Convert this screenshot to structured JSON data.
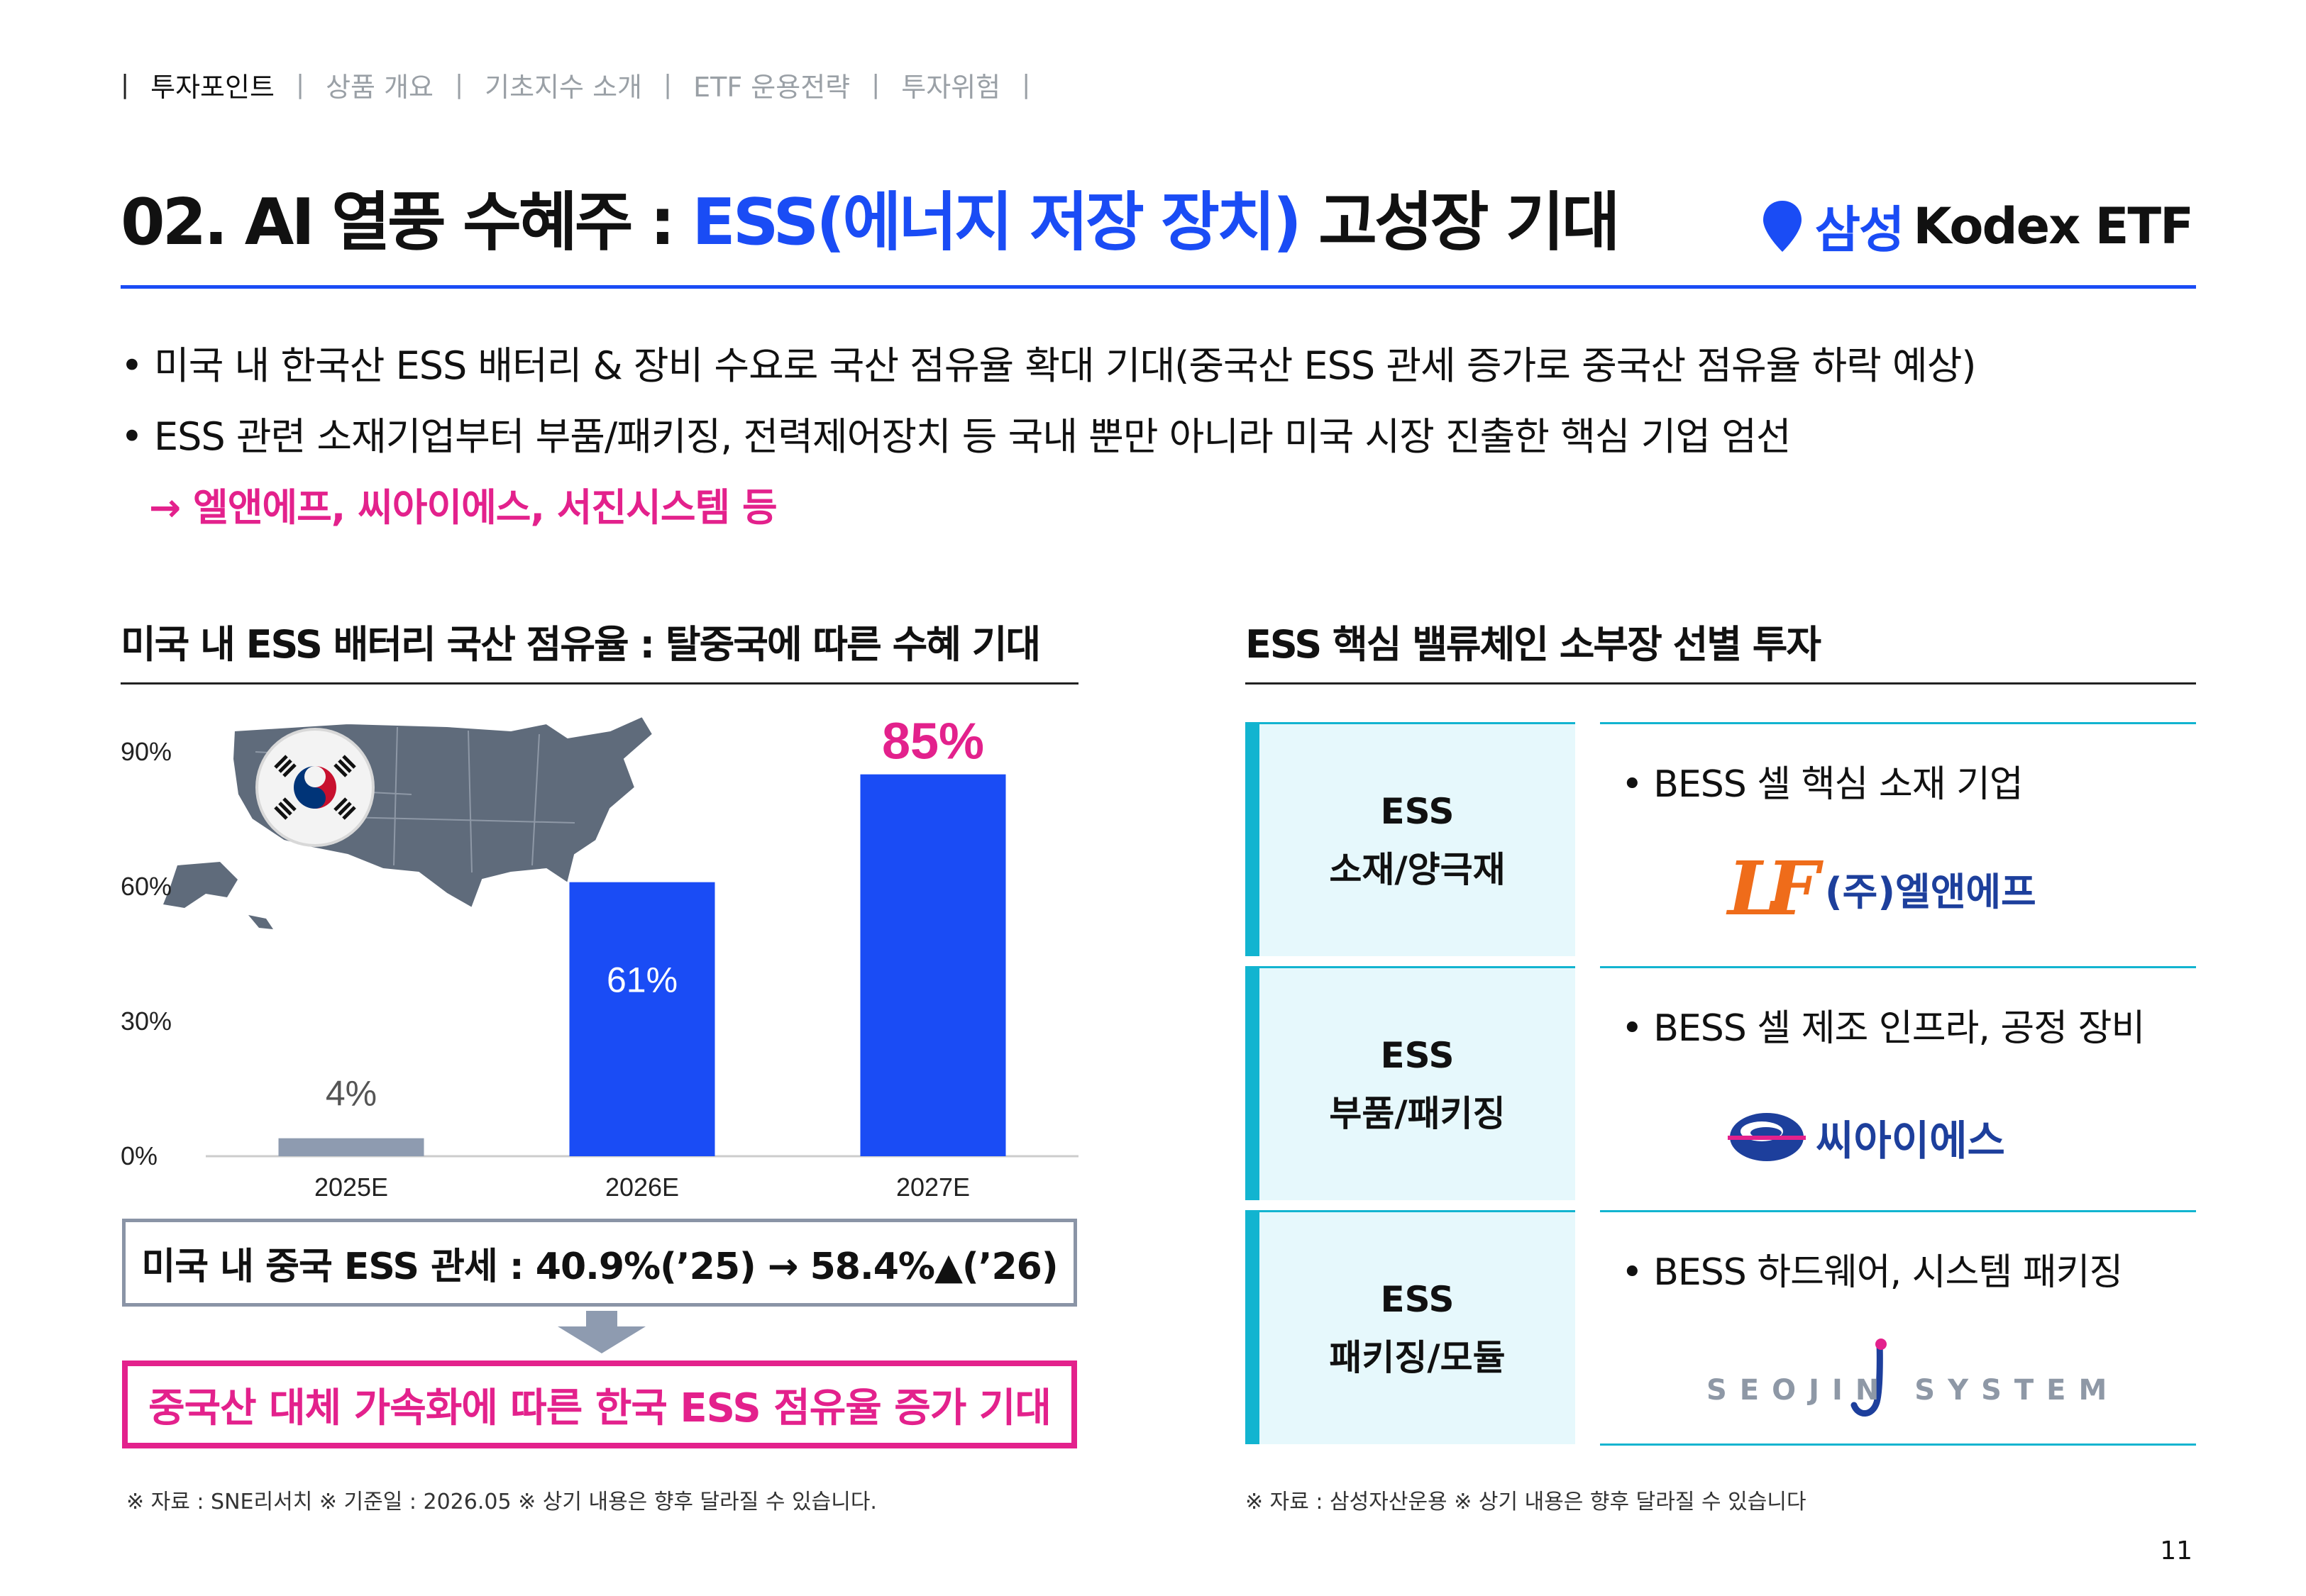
{
  "nav": {
    "items": [
      {
        "label": "투자포인트",
        "active": true
      },
      {
        "label": "상품 개요",
        "active": false
      },
      {
        "label": "기초지수 소개",
        "active": false
      },
      {
        "label": "ETF 운용전략",
        "active": false
      },
      {
        "label": "투자위험",
        "active": false
      }
    ],
    "separator": "|"
  },
  "header": {
    "title_prefix": "02. AI 열풍 수혜주 : ",
    "title_highlight": "ESS(에너지 저장 장치)",
    "title_suffix": " 고성장 기대",
    "brand_company": "삼성",
    "brand_product": "Kodex ETF"
  },
  "bullets": {
    "line1": "• 미국 내 한국산 ESS 배터리 & 장비 수요로 국산 점유율 확대 기대(중국산 ESS 관세 증가로 중국산 점유율 하락 예상)",
    "line2": "• ESS 관련 소재기업부터 부품/패키징, 전력제어장치 등 국내 뿐만 아니라 미국 시장 진출한 핵심 기업 엄선",
    "line3": "→ 엘앤에프, 씨아이에스, 서진시스템 등"
  },
  "left": {
    "section_title": "미국 내 ESS 배터리 국산 점유율 : 탈중국에 따른 수혜 기대",
    "tariff_text": "미국 내 중국 ESS 관세 : 40.9%(’25) → 58.4%▲(’26)",
    "result_text": "중국산 대체 가속화에 따른 한국 ESS 점유율 증가 기대",
    "footnote": "※ 자료 : SNE리서치 ※ 기준일 : 2026.05 ※ 상기 내용은 향후 달라질 수 있습니다."
  },
  "chart_data": {
    "type": "bar",
    "categories": [
      "2025E",
      "2026E",
      "2027E"
    ],
    "values": [
      4,
      61,
      85
    ],
    "data_labels": [
      "4%",
      "61%",
      "85%"
    ],
    "ylim": [
      0,
      90
    ],
    "yticks": [
      "0%",
      "30%",
      "60%",
      "90%"
    ],
    "ytick_values": [
      0,
      30,
      60,
      90
    ],
    "title": "",
    "xlabel": "",
    "ylabel": "",
    "grid": false,
    "colors": [
      "#8e9bb0",
      "#1a4cf5",
      "#1a4cf5"
    ],
    "label_colors": [
      "#555555",
      "#ffffff",
      "#e3218c"
    ]
  },
  "right": {
    "section_title": "ESS 핵심 밸류체인 소부장 선별 투자",
    "rows": [
      {
        "cat_line1": "ESS",
        "cat_line2": "소재/양극재",
        "bullet": "• BESS 셀 핵심 소재 기업",
        "logo_icon": "lnf-logo-icon",
        "logo_text": "(주)엘앤에프",
        "logo_mark": "LF"
      },
      {
        "cat_line1": "ESS",
        "cat_line2": "부품/패키징",
        "bullet": "• BESS 셀 제조 인프라, 공정 장비",
        "logo_icon": "cis-logo-icon",
        "logo_text": "씨아이에스"
      },
      {
        "cat_line1": "ESS",
        "cat_line2": "패키징/모듈",
        "bullet": "• BESS 하드웨어, 시스템 패키징",
        "logo_icon": "seojin-logo-icon",
        "logo_text": "SEOJIN SYSTEM"
      }
    ],
    "footnote": "※ 자료 : 삼성자산운용 ※ 상기 내용은 향후 달라질 수 있습니다"
  },
  "page_number": "11",
  "colors": {
    "accent_blue": "#1a4cf5",
    "accent_pink": "#e3218c",
    "teal": "#12b4d0",
    "gray_bar": "#8e9bb0"
  }
}
